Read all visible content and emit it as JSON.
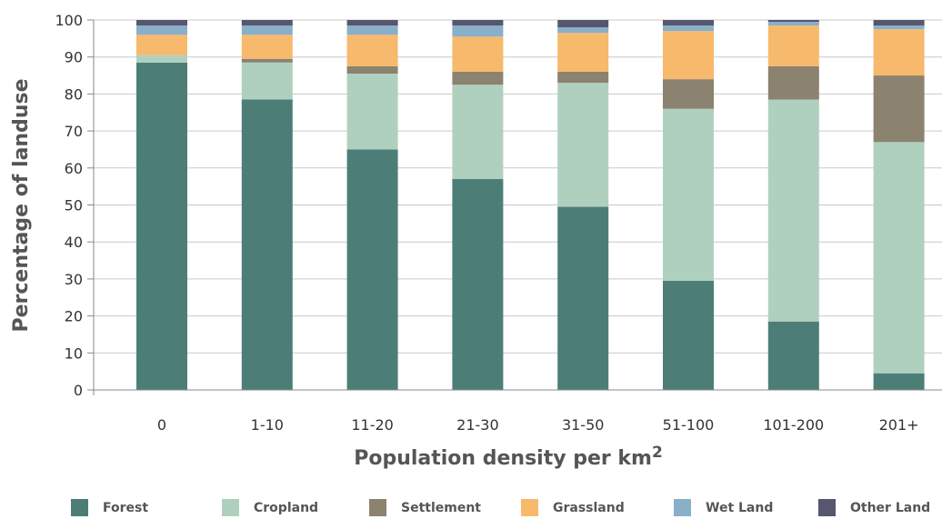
{
  "chart_data": {
    "type": "bar",
    "stacked": true,
    "categories": [
      "0",
      "1-10",
      "11-20",
      "21-30",
      "31-50",
      "51-100",
      "101-200",
      "201+"
    ],
    "series": [
      {
        "name": "Forest",
        "color": "#4c7e77",
        "values": [
          88.5,
          78.5,
          65,
          57,
          49.5,
          29.5,
          18.5,
          4.5
        ]
      },
      {
        "name": "Cropland",
        "color": "#b0d0bf",
        "values": [
          2,
          10,
          20.5,
          25.5,
          33.5,
          46.5,
          60,
          62.5
        ]
      },
      {
        "name": "Settlement",
        "color": "#8b8270",
        "values": [
          0,
          1,
          2,
          3.5,
          3,
          8,
          9,
          18
        ]
      },
      {
        "name": "Grassland",
        "color": "#f7b96b",
        "values": [
          5.5,
          6.5,
          8.5,
          9.5,
          10.5,
          13,
          11,
          12.5
        ]
      },
      {
        "name": "Wet Land",
        "color": "#8aafc9",
        "values": [
          2.5,
          2.5,
          2.5,
          3,
          1.5,
          1.5,
          1,
          1
        ]
      },
      {
        "name": "Other Land",
        "color": "#55576f",
        "values": [
          1.5,
          1.5,
          1.5,
          1.5,
          2,
          1.5,
          0.5,
          1.5
        ]
      }
    ],
    "xlabel": "Population density per km",
    "xlabel_superscript": "2",
    "ylabel": "Percentage of landuse",
    "ylim": [
      0,
      100
    ],
    "yticks": [
      "0",
      "10",
      "20",
      "30",
      "40",
      "50",
      "60",
      "70",
      "80",
      "90",
      "100"
    ],
    "grid": true,
    "legend_position": "bottom"
  }
}
